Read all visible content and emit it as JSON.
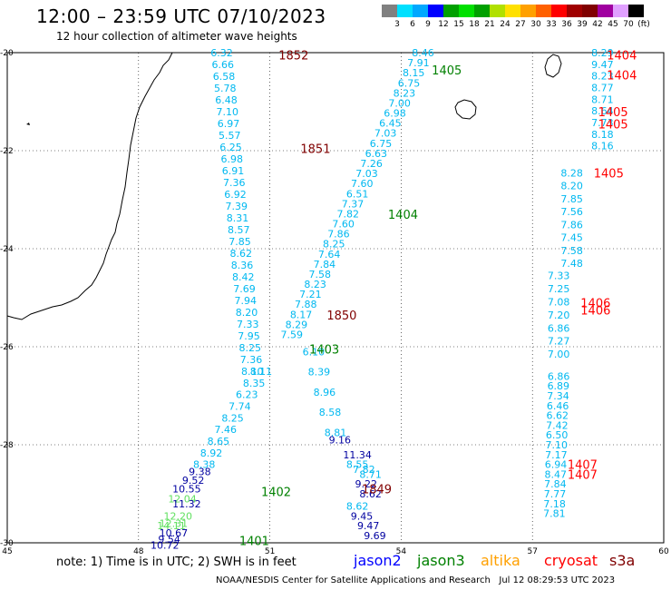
{
  "header": {
    "title": "12:00 – 23:59 UTC 07/10/2023",
    "subtitle": "12 hour collection of altimeter wave heights"
  },
  "colorbar": {
    "unit": "(ft)",
    "labels": [
      "3",
      "6",
      "9",
      "12",
      "15",
      "18",
      "21",
      "24",
      "27",
      "30",
      "33",
      "36",
      "39",
      "42",
      "45",
      "70"
    ],
    "colors": [
      "#808080",
      "#00e0ff",
      "#00a8ff",
      "#0000ff",
      "#00a000",
      "#00e000",
      "#00a000",
      "#b0e000",
      "#ffe000",
      "#ffa000",
      "#ff6000",
      "#ff0000",
      "#a00000",
      "#800000",
      "#a000a0",
      "#e0a0ff",
      "#000000"
    ]
  },
  "map": {
    "lon_ticks": [
      "45",
      "48",
      "51",
      "54",
      "57",
      "60"
    ],
    "lat_ticks": [
      "-20",
      "-22",
      "-24",
      "-26",
      "-28",
      "-30"
    ],
    "pass_labels": [
      {
        "text": "1852",
        "color": "#800000",
        "lon": 51.2,
        "lat": -20.05
      },
      {
        "text": "1851",
        "color": "#800000",
        "lon": 51.7,
        "lat": -21.95
      },
      {
        "text": "1850",
        "color": "#800000",
        "lon": 52.3,
        "lat": -25.35
      },
      {
        "text": "1849",
        "color": "#800000",
        "lon": 53.1,
        "lat": -28.9
      },
      {
        "text": "1405",
        "color": "#008000",
        "lon": 54.7,
        "lat": -20.35
      },
      {
        "text": "1404",
        "color": "#008000",
        "lon": 53.7,
        "lat": -23.3
      },
      {
        "text": "1403",
        "color": "#008000",
        "lon": 51.9,
        "lat": -26.05
      },
      {
        "text": "1402",
        "color": "#008000",
        "lon": 50.8,
        "lat": -28.95
      },
      {
        "text": "1401",
        "color": "#008000",
        "lon": 50.3,
        "lat": -29.95
      },
      {
        "text": "1404",
        "color": "#ff0000",
        "lon": 58.7,
        "lat": -20.05
      },
      {
        "text": "1404",
        "color": "#ff0000",
        "lon": 58.7,
        "lat": -20.45
      },
      {
        "text": "1405",
        "color": "#ff0000",
        "lon": 58.5,
        "lat": -21.2
      },
      {
        "text": "1405",
        "color": "#ff0000",
        "lon": 58.5,
        "lat": -21.45
      },
      {
        "text": "1405",
        "color": "#ff0000",
        "lon": 58.4,
        "lat": -22.45
      },
      {
        "text": "1406",
        "color": "#ff0000",
        "lon": 58.1,
        "lat": -25.1
      },
      {
        "text": "1406",
        "color": "#ff0000",
        "lon": 58.1,
        "lat": -25.25
      },
      {
        "text": "1407",
        "color": "#ff0000",
        "lon": 57.8,
        "lat": -28.4
      },
      {
        "text": "1407",
        "color": "#ff0000",
        "lon": 57.8,
        "lat": -28.6
      }
    ],
    "tracks": [
      {
        "color": "#00b8f0",
        "start": [
          49.9,
          -20.0
        ],
        "end": [
          50.6,
          -26.5
        ],
        "values": [
          "6.32",
          "6.66",
          "6.58",
          "5.78",
          "6.48",
          "7.10",
          "6.97",
          "5.57",
          "6.25",
          "6.98",
          "6.91",
          "7.36",
          "6.92",
          "7.39",
          "8.31",
          "8.57",
          "7.85",
          "8.62",
          "8.36",
          "8.42",
          "7.69",
          "7.94",
          "8.20",
          "7.33",
          "7.95",
          "8.25",
          "7.36",
          "8.10"
        ]
      },
      {
        "color": "#00b8f0",
        "start": [
          50.8,
          -26.5
        ],
        "end": [
          49.5,
          -28.4
        ],
        "values": [
          "8.11",
          "8.35",
          "6.23",
          "7.74",
          "8.25",
          "7.46",
          "8.65",
          "8.92",
          "8.38"
        ]
      },
      {
        "color": "#0000a0",
        "start": [
          49.4,
          -28.55
        ],
        "end": [
          49.1,
          -28.9
        ],
        "values": [
          "9.38",
          "9.52",
          "10.55"
        ]
      },
      {
        "color": "#60e060",
        "start": [
          49.0,
          -29.1
        ],
        "end": [
          48.8,
          -29.6
        ],
        "values": [
          "12.04",
          "12.31"
        ]
      },
      {
        "color": "#0000a0",
        "start": [
          49.1,
          -29.2
        ],
        "end": [
          49.0,
          -29.3
        ],
        "values": [
          "11.32"
        ]
      },
      {
        "color": "#60e060",
        "start": [
          48.9,
          -29.45
        ],
        "end": [
          48.75,
          -29.65
        ],
        "values": [
          "12.20",
          "14.11"
        ]
      },
      {
        "color": "#0000a0",
        "start": [
          48.8,
          -29.8
        ],
        "end": [
          48.6,
          -30.05
        ],
        "values": [
          "10.67",
          "9.54",
          "10.72"
        ]
      },
      {
        "color": "#00b8f0",
        "start": [
          54.5,
          -20.0
        ],
        "end": [
          51.5,
          -25.75
        ],
        "values": [
          "8.46",
          "7.91",
          "8.15",
          "6.75",
          "8.23",
          "7.00",
          "6.98",
          "6.45",
          "7.03",
          "6.75",
          "6.63",
          "7.26",
          "7.03",
          "7.60",
          "6.51",
          "7.37",
          "7.82",
          "7.60",
          "7.86",
          "8.25",
          "7.64",
          "7.84",
          "7.58",
          "8.23",
          "7.21",
          "7.88",
          "8.17",
          "8.29",
          "7.59"
        ]
      },
      {
        "color": "#00b8f0",
        "start": [
          52.0,
          -26.1
        ],
        "end": [
          52.5,
          -27.75
        ],
        "values": [
          "6.10",
          "8.39",
          "8.96",
          "8.58",
          "8.81"
        ]
      },
      {
        "color": "#0000a0",
        "start": [
          52.6,
          -27.9
        ],
        "end": [
          53.0,
          -28.2
        ],
        "values": [
          "9.16",
          "11.34"
        ]
      },
      {
        "color": "#00b8f0",
        "start": [
          53.0,
          -28.4
        ],
        "end": [
          53.3,
          -28.6
        ],
        "values": [
          "8.55",
          "7.82",
          "8.71"
        ]
      },
      {
        "color": "#0000a0",
        "start": [
          53.2,
          -28.8
        ],
        "end": [
          53.3,
          -29.0
        ],
        "values": [
          "9.22",
          "8.62"
        ]
      },
      {
        "color": "#00b8f0",
        "start": [
          53.0,
          -29.25
        ],
        "end": [
          53.1,
          -29.35
        ],
        "values": [
          "8.62"
        ]
      },
      {
        "color": "#0000a0",
        "start": [
          53.1,
          -29.45
        ],
        "end": [
          53.4,
          -29.85
        ],
        "values": [
          "9.45",
          "9.47",
          "9.69"
        ]
      },
      {
        "color": "#00b8f0",
        "start": [
          58.6,
          -20.0
        ],
        "end": [
          58.6,
          -21.9
        ],
        "values": [
          "8.29",
          "9.47",
          "8.23",
          "8.77",
          "8.71",
          "8.64",
          "7.73",
          "8.18",
          "8.16"
        ]
      },
      {
        "color": "#00b8f0",
        "start": [
          57.9,
          -22.45
        ],
        "end": [
          57.9,
          -24.3
        ],
        "values": [
          "8.28",
          "8.20",
          "7.85",
          "7.56",
          "7.86",
          "7.45",
          "7.58",
          "7.48"
        ]
      },
      {
        "color": "#00b8f0",
        "start": [
          57.6,
          -24.55
        ],
        "end": [
          57.6,
          -26.15
        ],
        "values": [
          "7.33",
          "7.25",
          "7.08",
          "7.20",
          "6.86",
          "7.27",
          "7.00"
        ]
      },
      {
        "color": "#00b8f0",
        "start": [
          57.6,
          -26.6
        ],
        "end": [
          57.5,
          -29.4
        ],
        "values": [
          "6.86",
          "6.89",
          "7.34",
          "6.46",
          "6.62",
          "7.42",
          "6.50",
          "7.10",
          "7.17",
          "6.94",
          "8.47",
          "7.84",
          "7.77",
          "7.18",
          "7.81"
        ]
      }
    ]
  },
  "footer": {
    "note": "note: 1) Time is in UTC; 2) SWH is in feet",
    "satellites": [
      {
        "name": "jason2",
        "color": "#0000ff"
      },
      {
        "name": "jason3",
        "color": "#008000"
      },
      {
        "name": "altika",
        "color": "#ffa000"
      },
      {
        "name": "cryosat",
        "color": "#ff0000"
      },
      {
        "name": "s3a",
        "color": "#800000"
      }
    ],
    "credit": "NOAA/NESDIS Center for Satellite Applications and Research   Jul 12 08:29:53 UTC 2023"
  }
}
